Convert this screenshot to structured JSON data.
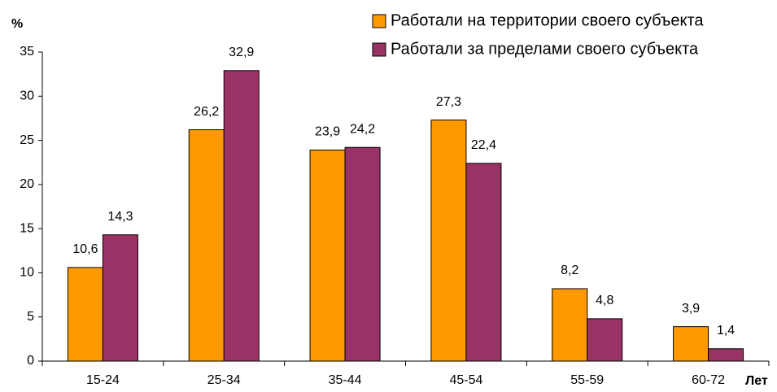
{
  "chart_data": {
    "type": "bar",
    "y_label": "%",
    "x_label": "Лет",
    "categories": [
      "15-24",
      "25-34",
      "35-44",
      "45-54",
      "55-59",
      "60-72"
    ],
    "series": [
      {
        "name": "Работали на территории своего субъекта",
        "color": "#ff9900",
        "values": [
          10.6,
          26.2,
          23.9,
          27.3,
          8.2,
          3.9
        ],
        "value_labels": [
          "10,6",
          "26,2",
          "23,9",
          "27,3",
          "8,2",
          "3,9"
        ]
      },
      {
        "name": "Работали за пределами своего субъекта",
        "color": "#993366",
        "values": [
          14.3,
          32.9,
          24.2,
          22.4,
          4.8,
          1.4
        ],
        "value_labels": [
          "14,3",
          "32,9",
          "24,2",
          "22,4",
          "4,8",
          "1,4"
        ]
      }
    ],
    "ylim": [
      0,
      35
    ],
    "yticks": [
      0,
      5,
      10,
      15,
      20,
      25,
      30,
      35
    ],
    "grid": false,
    "legend": "top-right"
  }
}
